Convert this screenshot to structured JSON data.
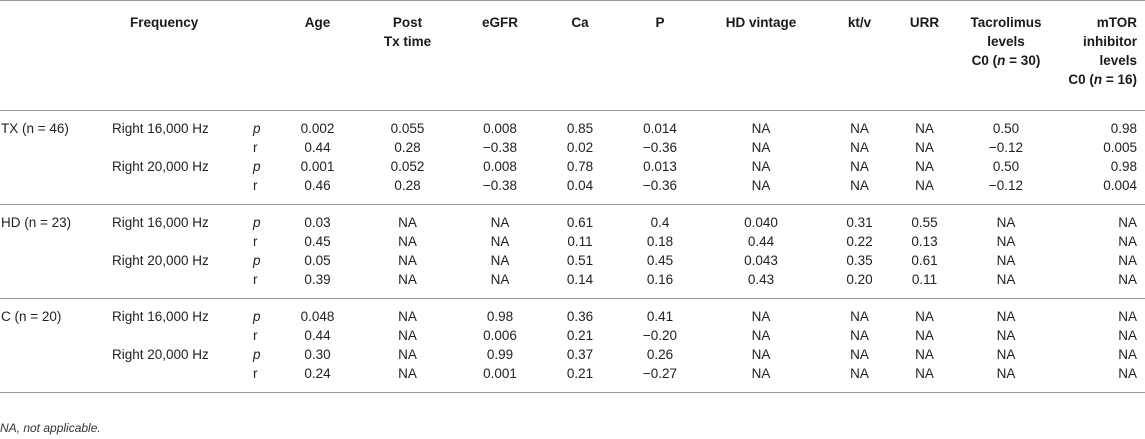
{
  "header": {
    "frequency": "Frequency",
    "age": "Age",
    "post_tx_time_l1": "Post",
    "post_tx_time_l2": "Tx time",
    "egfr": "eGFR",
    "ca": "Ca",
    "p": "P",
    "hd_vintage": "HD vintage",
    "ktv": "kt/v",
    "urr": "URR",
    "tacrolimus_l1": "Tacrolimus",
    "tacrolimus_l2": "levels",
    "tacrolimus_l3a": "C0 (",
    "tacrolimus_n": "n",
    "tacrolimus_l3b": " = 30)",
    "mtor_l1": "mTOR",
    "mtor_l2": "inhibitor",
    "mtor_l3": "levels",
    "mtor_l4a": "C0 (",
    "mtor_n": "n",
    "mtor_l4b": " = 16)"
  },
  "groups": [
    {
      "label": "TX (n = 46)",
      "rows": [
        {
          "freq": "Right 16,000 Hz",
          "stat": "p",
          "values": [
            "0.002",
            "0.055",
            "0.008",
            "0.85",
            "0.014",
            "NA",
            "NA",
            "NA",
            "0.50",
            "0.98"
          ]
        },
        {
          "freq": "",
          "stat": "r",
          "values": [
            "0.44",
            "0.28",
            "−0.38",
            "0.02",
            "−0.36",
            "NA",
            "NA",
            "NA",
            "−0.12",
            "0.005"
          ]
        },
        {
          "freq": "Right 20,000 Hz",
          "stat": "p",
          "values": [
            "0.001",
            "0.052",
            "0.008",
            "0.78",
            "0.013",
            "NA",
            "NA",
            "NA",
            "0.50",
            "0.98"
          ]
        },
        {
          "freq": "",
          "stat": "r",
          "values": [
            "0.46",
            "0.28",
            "−0.38",
            "0.04",
            "−0.36",
            "NA",
            "NA",
            "NA",
            "−0.12",
            "0.004"
          ]
        }
      ]
    },
    {
      "label": "HD (n = 23)",
      "rows": [
        {
          "freq": "Right 16,000 Hz",
          "stat": "p",
          "values": [
            "0.03",
            "NA",
            "NA",
            "0.61",
            "0.4",
            "0.040",
            "0.31",
            "0.55",
            "NA",
            "NA"
          ]
        },
        {
          "freq": "",
          "stat": "r",
          "values": [
            "0.45",
            "NA",
            "NA",
            "0.11",
            "0.18",
            "0.44",
            "0.22",
            "0.13",
            "NA",
            "NA"
          ]
        },
        {
          "freq": "Right 20,000 Hz",
          "stat": "p",
          "values": [
            "0.05",
            "NA",
            "NA",
            "0.51",
            "0.45",
            "0.043",
            "0.35",
            "0.61",
            "NA",
            "NA"
          ]
        },
        {
          "freq": "",
          "stat": "r",
          "values": [
            "0.39",
            "NA",
            "NA",
            "0.14",
            "0.16",
            "0.43",
            "0.20",
            "0.11",
            "NA",
            "NA"
          ]
        }
      ]
    },
    {
      "label": "C (n = 20)",
      "rows": [
        {
          "freq": "Right 16,000 Hz",
          "stat": "p",
          "values": [
            "0.048",
            "NA",
            "0.98",
            "0.36",
            "0.41",
            "NA",
            "NA",
            "NA",
            "NA",
            "NA"
          ]
        },
        {
          "freq": "",
          "stat": "r",
          "values": [
            "0.44",
            "NA",
            "0.006",
            "0.21",
            "−0.20",
            "NA",
            "NA",
            "NA",
            "NA",
            "NA"
          ]
        },
        {
          "freq": "Right 20,000 Hz",
          "stat": "p",
          "values": [
            "0.30",
            "NA",
            "0.99",
            "0.37",
            "0.26",
            "NA",
            "NA",
            "NA",
            "NA",
            "NA"
          ]
        },
        {
          "freq": "",
          "stat": "r",
          "values": [
            "0.24",
            "NA",
            "0.001",
            "0.21",
            "−0.27",
            "NA",
            "NA",
            "NA",
            "NA",
            "NA"
          ]
        }
      ]
    }
  ],
  "footnote": "NA, not applicable."
}
